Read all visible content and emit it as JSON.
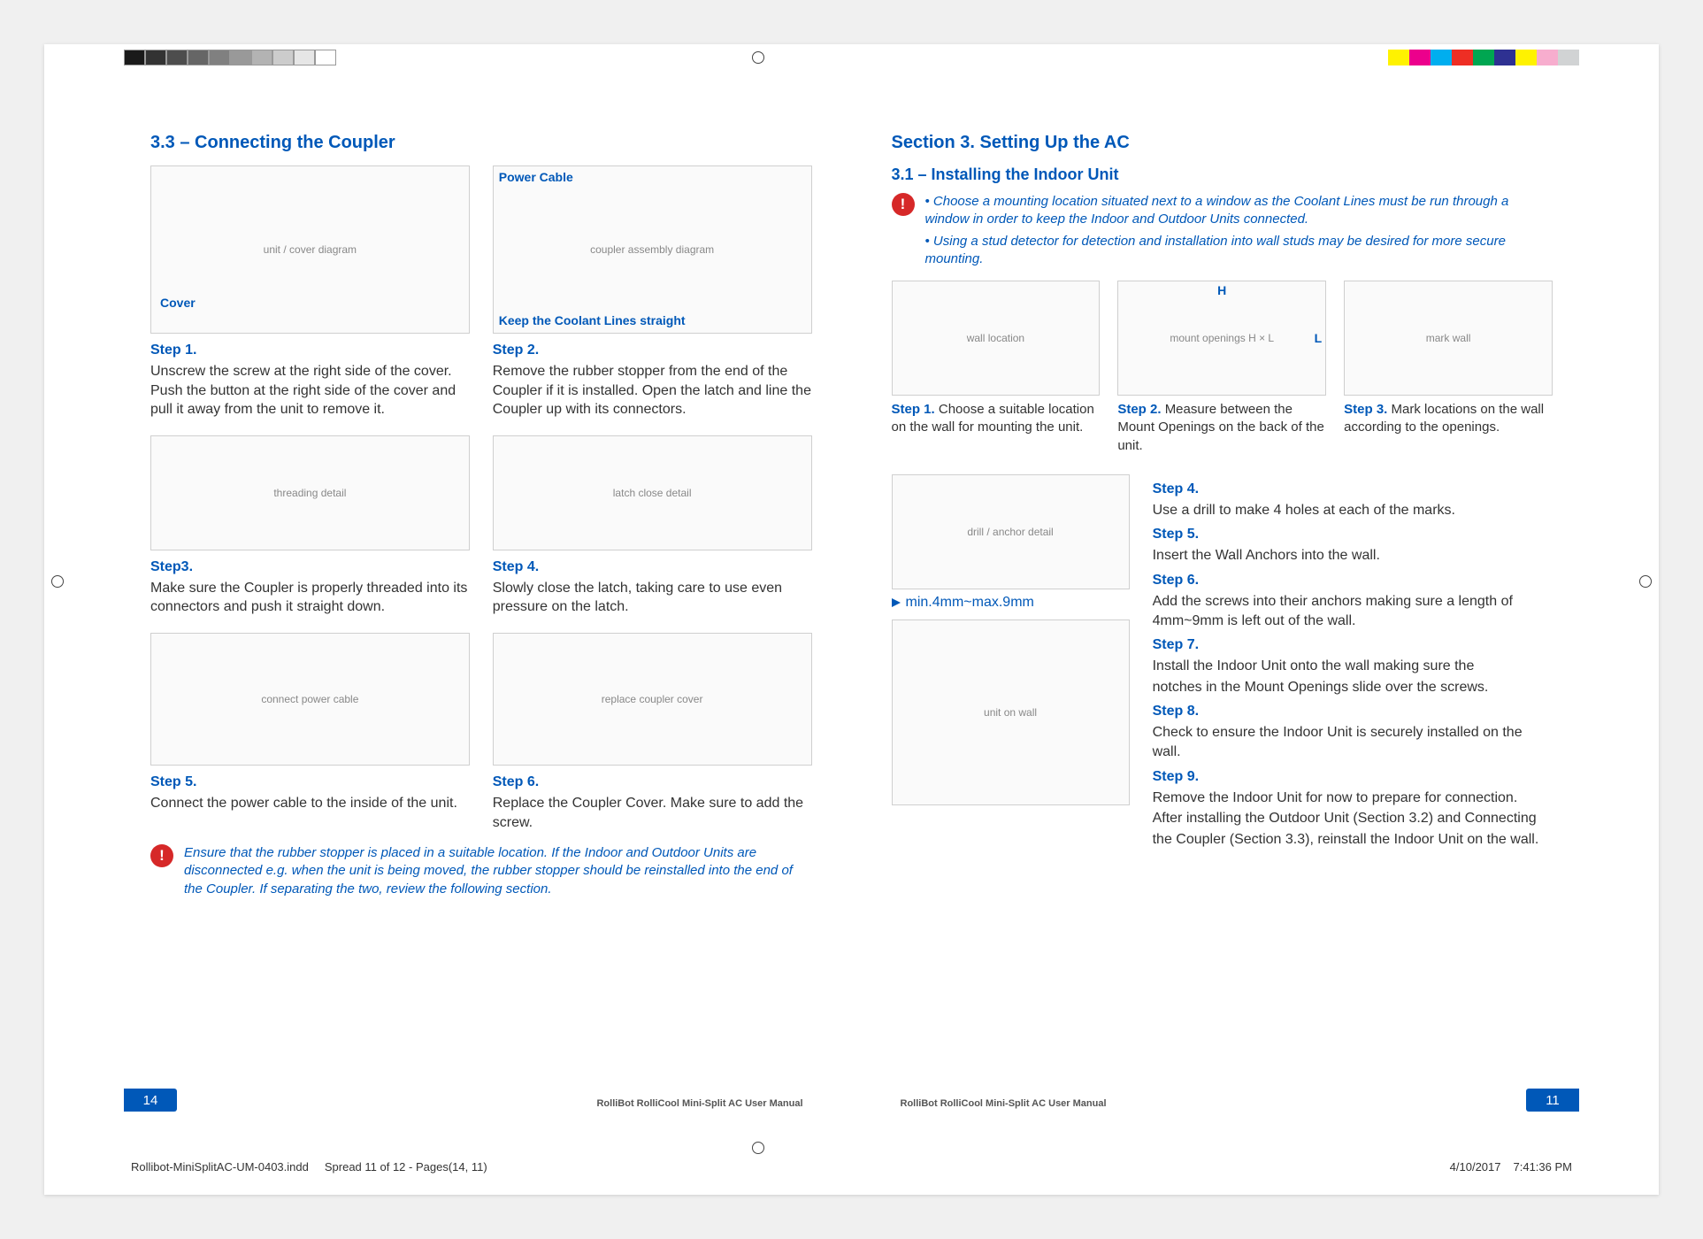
{
  "colors": {
    "brand_blue": "#0058b8",
    "alert_red": "#d62828",
    "body_text": "#333333",
    "muted": "#888888",
    "fig_border": "#cfcfcf",
    "fig_bg": "#fafafa"
  },
  "proofbar_left_colors": [
    "#1a1a1a",
    "#333333",
    "#4d4d4d",
    "#666666",
    "#808080",
    "#999999",
    "#b3b3b3",
    "#cccccc",
    "#e6e6e6",
    "#ffffff"
  ],
  "proofbar_right_colors": [
    "#ffffff",
    "#fff200",
    "#ec008c",
    "#00aeef",
    "#ee2e24",
    "#00a651",
    "#2e3192",
    "#fff200",
    "#f7adce",
    "#d1d3d4"
  ],
  "left_page": {
    "section_title": "3.3 – Connecting the Coupler",
    "fig_labels": {
      "cover": "Cover",
      "power_cable": "Power Cable",
      "keep_coolant": "Keep the Coolant Lines straight"
    },
    "steps": [
      {
        "label": "Step 1.",
        "body": "Unscrew the screw at the right side of the cover. Push the button at the right side of the cover and pull it away from the unit to remove it."
      },
      {
        "label": "Step 2.",
        "body": "Remove the rubber stopper from the end of the Coupler if it is installed. Open the latch and line the Coupler up with its connectors."
      },
      {
        "label": "Step3.",
        "body": "Make sure the Coupler is properly threaded into its connectors and push it straight down."
      },
      {
        "label": "Step 4.",
        "body": "Slowly close the latch, taking care to use even pressure on the latch."
      },
      {
        "label": "Step 5.",
        "body": "Connect the power cable to the inside of the unit."
      },
      {
        "label": "Step 6.",
        "body": "Replace the Coupler Cover. Make sure to add the screw."
      }
    ],
    "important": "Ensure that the rubber stopper is placed in a suitable location. If the Indoor and Outdoor Units are disconnected e.g. when the unit is being moved, the rubber stopper should be reinstalled into the end of the Coupler. If separating the two, review the following section.",
    "page_number": "14",
    "footer": "RolliBot RolliCool Mini-Split AC User Manual"
  },
  "right_page": {
    "section_title": "Section 3. Setting Up the AC",
    "subsection_title": "3.1 – Installing the Indoor Unit",
    "important_lines": [
      "• Choose a mounting location situated next to a window as the Coolant Lines must be run through a window in order to keep the Indoor and Outdoor Units connected.",
      "• Using a stud detector for detection and installation into wall studs may be desired for more secure mounting."
    ],
    "dim_labels": {
      "h": "H",
      "l": "L"
    },
    "top_captions": [
      {
        "lbl": "Step 1.",
        "body": "Choose a suitable location on the wall for mounting the unit."
      },
      {
        "lbl": "Step 2.",
        "body": "Measure between the Mount Openings on the back of the unit."
      },
      {
        "lbl": "Step 3.",
        "body": "Mark locations on the wall according to the openings."
      }
    ],
    "screw_note": "min.4mm~max.9mm",
    "steps": [
      {
        "label": "Step 4.",
        "body": "Use a drill to make 4 holes at each of the marks."
      },
      {
        "label": "Step 5.",
        "body": "Insert the Wall Anchors into the wall."
      },
      {
        "label": "Step 6.",
        "body": "Add the screws into their anchors making sure a length of 4mm~9mm is left out of the wall."
      },
      {
        "label": "Step 7.",
        "body": "Install the Indoor Unit onto the wall making sure the"
      },
      {
        "label": "",
        "body": "notches in the Mount Openings slide over the screws."
      },
      {
        "label": "Step 8.",
        "body": "Check to ensure the Indoor Unit is securely installed on the wall."
      },
      {
        "label": "Step 9.",
        "body": "Remove the Indoor Unit for now to prepare for connection."
      },
      {
        "label": "",
        "body": "After installing the Outdoor Unit (Section 3.2) and Connecting"
      },
      {
        "label": "",
        "body": "the Coupler (Section 3.3), reinstall the Indoor Unit on the wall."
      }
    ],
    "page_number": "11",
    "footer": "RolliBot RolliCool Mini-Split AC User Manual"
  },
  "slug": {
    "file": "Rollibot-MiniSplitAC-UM-0403.indd",
    "spread": "Spread 11 of 12 - Pages(14, 11)",
    "date": "4/10/2017",
    "time": "7:41:36 PM"
  }
}
